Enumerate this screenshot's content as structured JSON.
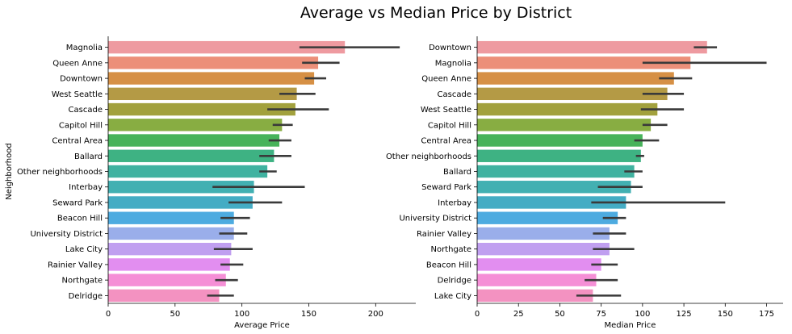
{
  "title": "Average vs Median Price by District",
  "colors": [
    "#ee9aa0",
    "#ec8f79",
    "#d69045",
    "#b49a45",
    "#a2a13d",
    "#88ad42",
    "#47b35a",
    "#3eb283",
    "#40b2a0",
    "#42b0b2",
    "#44acc4",
    "#4dabe0",
    "#9aaeea",
    "#c09ff0",
    "#e28ef0",
    "#f58fd6",
    "#f392c1"
  ],
  "error_color": "#3a3a3a",
  "chart_data": [
    {
      "type": "bar",
      "orientation": "horizontal",
      "ylabel": "Neighborhood",
      "xlabel": "Average Price",
      "xlim": [
        0,
        230
      ],
      "xticks": [
        0,
        50,
        100,
        150,
        200
      ],
      "categories": [
        "Magnolia",
        "Queen Anne",
        "Downtown",
        "West Seattle",
        "Cascade",
        "Capitol Hill",
        "Central Area",
        "Ballard",
        "Other neighborhoods",
        "Interbay",
        "Seward Park",
        "Beacon Hill",
        "University District",
        "Lake City",
        "Rainier Valley",
        "Northgate",
        "Delridge"
      ],
      "values": [
        177,
        157,
        154,
        141,
        140,
        130,
        128,
        124,
        119,
        109,
        108,
        94,
        94,
        92,
        91,
        88,
        83
      ],
      "ci_low": [
        143,
        145,
        147,
        128,
        119,
        123,
        120,
        113,
        113,
        78,
        90,
        84,
        83,
        79,
        84,
        80,
        74
      ],
      "ci_high": [
        218,
        173,
        163,
        155,
        165,
        138,
        137,
        137,
        126,
        147,
        130,
        106,
        104,
        108,
        101,
        97,
        94
      ]
    },
    {
      "type": "bar",
      "orientation": "horizontal",
      "ylabel": "",
      "xlabel": "Median Price",
      "xlim": [
        0,
        185
      ],
      "xticks": [
        0,
        25,
        50,
        75,
        100,
        125,
        150,
        175
      ],
      "categories": [
        "Downtown",
        "Magnolia",
        "Queen Anne",
        "Cascade",
        "West Seattle",
        "Capitol Hill",
        "Central Area",
        "Other neighborhoods",
        "Ballard",
        "Seward Park",
        "Interbay",
        "University District",
        "Rainier Valley",
        "Northgate",
        "Beacon Hill",
        "Delridge",
        "Lake City"
      ],
      "values": [
        139,
        129,
        119,
        115,
        109,
        105,
        100,
        99,
        95,
        93,
        90,
        85,
        80,
        80,
        75,
        72,
        70
      ],
      "ci_low": [
        131,
        100,
        110,
        100,
        99,
        100,
        95,
        96,
        89,
        73,
        69,
        76,
        70,
        70,
        69,
        65,
        60
      ],
      "ci_high": [
        145,
        175,
        130,
        125,
        125,
        115,
        110,
        101,
        100,
        100,
        150,
        90,
        90,
        95,
        85,
        85,
        87
      ]
    }
  ]
}
